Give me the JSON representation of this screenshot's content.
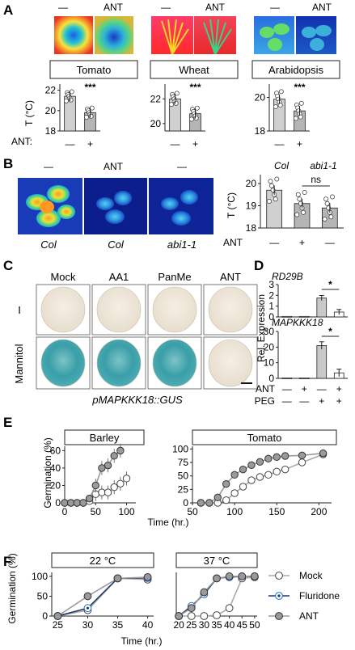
{
  "panel_letters": [
    "A",
    "B",
    "C",
    "D",
    "E",
    "F"
  ],
  "panelA": {
    "treatment_labels": [
      "—",
      "ANT"
    ],
    "species": [
      "Tomato",
      "Wheat",
      "Arabidopsis"
    ],
    "ylabel": "T (°C)",
    "xrow_label": "ANT:",
    "x_ticks": [
      "—",
      "+"
    ],
    "sig": "***",
    "charts": [
      {
        "yticks": [
          "22",
          "20",
          "18"
        ],
        "ylim": [
          18,
          22.6
        ],
        "values": [
          21.4,
          19.8
        ]
      },
      {
        "yticks": [
          "22",
          "20"
        ],
        "ylim": [
          19.4,
          23.2
        ],
        "values": [
          22.0,
          20.8
        ]
      },
      {
        "yticks": [
          "20",
          "18"
        ],
        "ylim": [
          18,
          20.8
        ],
        "values": [
          19.9,
          19.2
        ]
      }
    ]
  },
  "panelB": {
    "top_labels": [
      "—",
      "ANT",
      "—"
    ],
    "bottom_labels": [
      "Col",
      "Col",
      "abi1-1"
    ],
    "chart_headers": [
      "Col",
      "abi1-1"
    ],
    "ylabel": "T (°C)",
    "yticks": [
      "20",
      "19",
      "18"
    ],
    "ylim": [
      18,
      20.4
    ],
    "values": [
      19.7,
      19.1,
      18.9
    ],
    "ns": "ns",
    "xrow_label": "ANT",
    "x_ticks": [
      "—",
      "+",
      "—"
    ]
  },
  "panelC": {
    "col_labels": [
      "Mock",
      "AA1",
      "PanMe",
      "ANT"
    ],
    "row_labels": [
      "I",
      "Mannitol"
    ],
    "caption": "pMAPKKK18::GUS"
  },
  "panelD": {
    "ylabel": "Rel. Expression",
    "charts": [
      {
        "gene": "RD29B",
        "yticks": [
          "3",
          "2",
          "1",
          "0"
        ],
        "ylim": [
          0,
          3
        ],
        "values": [
          0.05,
          0.05,
          1.75,
          0.45
        ],
        "sig": "*"
      },
      {
        "gene": "MAPKKK18",
        "yticks": [
          "30",
          "20",
          "10",
          "0"
        ],
        "ylim": [
          0,
          30
        ],
        "values": [
          0.3,
          0.3,
          21,
          3.5
        ],
        "sig": "*"
      }
    ],
    "rows": [
      {
        "label": "ANT",
        "marks": [
          "—",
          "+",
          "—",
          "+"
        ]
      },
      {
        "label": "PEG",
        "marks": [
          "—",
          "—",
          "+",
          "+"
        ]
      }
    ]
  },
  "panelE": {
    "ylabel": "Germination (%)",
    "xlabel": "Time (hr.)",
    "chart_data": [
      {
        "type": "line",
        "title": "Barley",
        "xticks": [
          "0",
          "50",
          "100"
        ],
        "yticks": [
          "60",
          "40",
          "20",
          "0"
        ],
        "xlim": [
          0,
          115
        ],
        "ylim": [
          0,
          65
        ],
        "series": [
          {
            "style": "open",
            "x": [
              0,
              10,
              20,
              30,
              40,
              50,
              60,
              70,
              80,
              90,
              100
            ],
            "y": [
              0,
              0,
              0,
              0,
              2,
              10,
              12,
              12,
              18,
              22,
              28
            ]
          },
          {
            "style": "gray",
            "x": [
              0,
              10,
              20,
              30,
              40,
              50,
              60,
              70,
              80,
              90
            ],
            "y": [
              0,
              0,
              0,
              0,
              5,
              20,
              40,
              43,
              54,
              60
            ]
          }
        ]
      },
      {
        "type": "line",
        "title": "Tomato",
        "xticks": [
          "50",
          "100",
          "150",
          "200"
        ],
        "yticks": [
          "100",
          "75",
          "50",
          "25",
          "0"
        ],
        "xlim": [
          50,
          215
        ],
        "ylim": [
          0,
          105
        ],
        "series": [
          {
            "style": "open",
            "x": [
              60,
              70,
              80,
              90,
              100,
              110,
              120,
              130,
              140,
              150,
              160,
              180,
              205
            ],
            "y": [
              0,
              0,
              0,
              5,
              18,
              30,
              42,
              48,
              52,
              58,
              62,
              75,
              90
            ]
          },
          {
            "style": "gray",
            "x": [
              60,
              70,
              80,
              90,
              100,
              110,
              120,
              130,
              140,
              150,
              160,
              180,
              205
            ],
            "y": [
              0,
              0,
              10,
              35,
              52,
              62,
              70,
              76,
              82,
              85,
              87,
              88,
              92
            ]
          }
        ]
      }
    ]
  },
  "panelF": {
    "ylabel": "Germination (%)",
    "xlabel": "Time (hr.)",
    "legend": [
      "Mock",
      "Fluridone",
      "ANT"
    ],
    "chart_data": [
      {
        "type": "line",
        "title": "22 °C",
        "xticks": [
          "25",
          "30",
          "35",
          "40"
        ],
        "yticks": [
          "100",
          "50",
          "0"
        ],
        "xlim": [
          24,
          41
        ],
        "ylim": [
          0,
          110
        ],
        "series": [
          {
            "style": "open",
            "x": [
              25,
              30,
              35,
              40
            ],
            "y": [
              0,
              15,
              95,
              92
            ]
          },
          {
            "style": "blue",
            "x": [
              25,
              30,
              35,
              40
            ],
            "y": [
              0,
              20,
              95,
              96
            ]
          },
          {
            "style": "gray",
            "x": [
              25,
              30,
              35,
              40
            ],
            "y": [
              0,
              50,
              95,
              98
            ]
          }
        ]
      },
      {
        "type": "line",
        "title": "37 °C",
        "xticks": [
          "20",
          "25",
          "30",
          "35",
          "40",
          "45",
          "50"
        ],
        "yticks": [],
        "xlim": [
          19,
          51
        ],
        "ylim": [
          0,
          110
        ],
        "series": [
          {
            "style": "open",
            "x": [
              20,
              25,
              30,
              35,
              40,
              45,
              50
            ],
            "y": [
              0,
              0,
              0,
              2,
              20,
              95,
              98
            ]
          },
          {
            "style": "blue",
            "x": [
              20,
              25,
              30,
              35,
              40,
              45,
              50
            ],
            "y": [
              0,
              25,
              55,
              95,
              98,
              100,
              100
            ]
          },
          {
            "style": "gray",
            "x": [
              20,
              25,
              30,
              35,
              40,
              45,
              50
            ],
            "y": [
              0,
              20,
              60,
              95,
              100,
              100,
              100
            ]
          }
        ]
      }
    ]
  }
}
